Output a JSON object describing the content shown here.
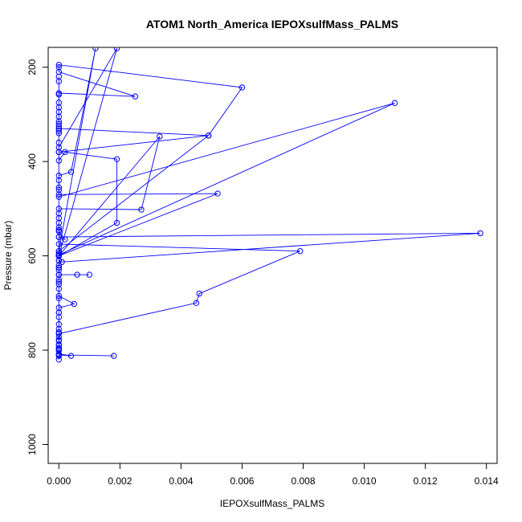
{
  "chart_data": {
    "type": "line",
    "title": "ATOM1 North_America IEPOXsulfMass_PALMS",
    "xlabel": "IEPOXsulfMass_PALMS",
    "ylabel": "Pressure (mbar)",
    "xlim": [
      -0.00035,
      0.01435
    ],
    "ylim": [
      1040,
      158
    ],
    "y_reversed": true,
    "x_ticks": [
      0,
      0.002,
      0.004,
      0.006,
      0.008,
      0.01,
      0.012,
      0.014
    ],
    "x_tick_labels": [
      "0.000",
      "0.002",
      "0.004",
      "0.006",
      "0.008",
      "0.010",
      "0.012",
      "0.014"
    ],
    "y_ticks": [
      200,
      400,
      600,
      800,
      1000
    ],
    "y_tick_labels": [
      "200",
      "400",
      "600",
      "800",
      "1000"
    ],
    "grid": false,
    "legend": "none",
    "series": [
      {
        "color": "#0000ff",
        "marker": "open-circle",
        "points": [
          [
            0.0018,
            812
          ],
          [
            0.0,
            810
          ],
          [
            0.0004,
            812
          ],
          [
            0.0,
            808
          ],
          [
            0.0,
            800
          ],
          [
            0.0,
            795
          ],
          [
            0.0,
            788
          ],
          [
            0.0,
            780
          ],
          [
            0.0,
            772
          ],
          [
            0.0,
            765
          ],
          [
            0.0045,
            700
          ],
          [
            0.0046,
            680
          ],
          [
            0.0079,
            590
          ],
          [
            0.0,
            575
          ],
          [
            0.0,
            560
          ],
          [
            0.0002,
            565
          ],
          [
            0.0,
            548
          ],
          [
            0.0,
            540
          ],
          [
            0.0,
            530
          ],
          [
            0.0,
            520
          ],
          [
            0.0,
            510
          ],
          [
            0.0,
            500
          ],
          [
            0.0027,
            502
          ],
          [
            0.0033,
            347
          ],
          [
            0.0,
            600
          ],
          [
            0.0,
            610
          ],
          [
            0.0001,
            613
          ],
          [
            0.0138,
            552
          ],
          [
            0.0,
            560
          ],
          [
            0.0,
            545
          ],
          [
            0.0,
            470
          ],
          [
            0.0052,
            468
          ],
          [
            0.0,
            600
          ],
          [
            0.0,
            595
          ],
          [
            0.0,
            590
          ],
          [
            0.0049,
            345
          ],
          [
            0.0,
            330
          ],
          [
            0.0,
            325
          ],
          [
            0.0,
            320
          ],
          [
            0.0,
            315
          ],
          [
            0.0,
            305
          ],
          [
            0.0,
            295
          ],
          [
            0.0,
            285
          ],
          [
            0.0,
            275
          ],
          [
            0.0,
            258
          ],
          [
            0.0,
            255
          ],
          [
            0.0025,
            262
          ],
          [
            0.0,
            210
          ],
          [
            0.0,
            200
          ],
          [
            0.0,
            195
          ],
          [
            0.006,
            243
          ],
          [
            0.0049,
            345
          ],
          [
            0.0,
            380
          ],
          [
            0.0,
            398
          ],
          [
            0.0002,
            380
          ],
          [
            0.0019,
            395
          ],
          [
            0.0019,
            530
          ],
          [
            0.0,
            600
          ],
          [
            0.0,
            625
          ],
          [
            0.0,
            640
          ],
          [
            0.0006,
            640
          ],
          [
            0.001,
            640
          ],
          [
            0.0,
            640
          ],
          [
            0.0,
            650
          ],
          [
            0.0,
            660
          ],
          [
            0.0,
            670
          ],
          [
            0.0,
            685
          ],
          [
            0.0005,
            702
          ],
          [
            0.0,
            710
          ],
          [
            0.0,
            720
          ],
          [
            0.0,
            730
          ],
          [
            0.0,
            745
          ],
          [
            0.0,
            755
          ],
          [
            0.0,
            762
          ],
          [
            0.0,
            778
          ],
          [
            0.0,
            790
          ],
          [
            0.0,
            798
          ],
          [
            0.0,
            800
          ],
          [
            0.0,
            812
          ],
          [
            0.0,
            720
          ],
          [
            0.0,
            690
          ],
          [
            0.0,
            655
          ],
          [
            0.0,
            630
          ],
          [
            0.0,
            620
          ],
          [
            0.0,
            598
          ],
          [
            0.011,
            276
          ],
          [
            0.0,
            475
          ],
          [
            0.0,
            460
          ],
          [
            0.0,
            455
          ],
          [
            0.0,
            440
          ],
          [
            0.0,
            430
          ],
          [
            0.0004,
            422
          ],
          [
            0.0012,
            160
          ],
          [
            0.0,
            590
          ],
          [
            0.0,
            600
          ],
          [
            0.0019,
            160
          ],
          [
            0.0,
            370
          ],
          [
            0.0,
            600
          ],
          [
            0.0,
            610
          ],
          [
            0.0,
            220
          ],
          [
            0.0,
            230
          ],
          [
            0.0,
            380
          ],
          [
            0.0,
            640
          ],
          [
            0.0,
            625
          ],
          [
            0.0,
            600
          ],
          [
            0.0,
            360
          ],
          [
            0.0,
            340
          ],
          [
            0.0,
            335
          ],
          [
            0.0,
            330
          ],
          [
            0.0,
            640
          ],
          [
            0.0,
            800
          ],
          [
            0.0,
            820
          ]
        ]
      }
    ]
  }
}
